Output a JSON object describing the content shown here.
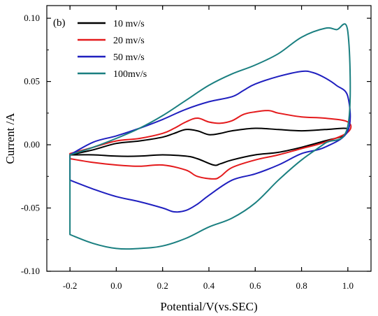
{
  "chart_data": {
    "type": "line",
    "panel_label": "(b)",
    "xlabel": "Potential/V(vs.SEC)",
    "ylabel": "Current /A",
    "xlim": [
      -0.3,
      1.1
    ],
    "ylim": [
      -0.1,
      0.11
    ],
    "xticks": [
      -0.2,
      0.0,
      0.2,
      0.4,
      0.6,
      0.8,
      1.0
    ],
    "xtick_labels": [
      "-0.2",
      "0.0",
      "0.2",
      "0.4",
      "0.6",
      "0.8",
      "1.0"
    ],
    "yticks": [
      -0.1,
      -0.05,
      0.0,
      0.05,
      0.1
    ],
    "ytick_labels": [
      "-0.10",
      "-0.05",
      "0.00",
      "0.05",
      "0.10"
    ],
    "grid": false,
    "legend_position": "top-left",
    "series": [
      {
        "name": "10 mv/s",
        "color": "#000000",
        "x": [
          -0.2,
          -0.1,
          0.0,
          0.1,
          0.2,
          0.25,
          0.3,
          0.35,
          0.4,
          0.45,
          0.5,
          0.6,
          0.7,
          0.8,
          0.9,
          0.98,
          1.0,
          0.98,
          0.9,
          0.8,
          0.7,
          0.6,
          0.5,
          0.45,
          0.42,
          0.35,
          0.3,
          0.2,
          0.1,
          0.0,
          -0.1,
          -0.2
        ],
        "y": [
          -0.008,
          -0.004,
          0.001,
          0.003,
          0.006,
          0.009,
          0.012,
          0.011,
          0.008,
          0.009,
          0.011,
          0.013,
          0.012,
          0.011,
          0.012,
          0.013,
          0.012,
          0.007,
          0.003,
          -0.002,
          -0.006,
          -0.008,
          -0.012,
          -0.015,
          -0.016,
          -0.011,
          -0.009,
          -0.008,
          -0.009,
          -0.009,
          -0.008,
          -0.008
        ]
      },
      {
        "name": "20 mv/s",
        "color": "#e41a1c",
        "x": [
          -0.2,
          -0.1,
          0.0,
          0.1,
          0.2,
          0.25,
          0.3,
          0.35,
          0.4,
          0.45,
          0.5,
          0.55,
          0.6,
          0.66,
          0.7,
          0.8,
          0.9,
          1.0,
          1.0,
          0.9,
          0.8,
          0.7,
          0.6,
          0.5,
          0.45,
          0.42,
          0.35,
          0.3,
          0.2,
          0.1,
          0.0,
          -0.1,
          -0.2
        ],
        "y": [
          -0.007,
          -0.002,
          0.003,
          0.005,
          0.009,
          0.013,
          0.018,
          0.021,
          0.018,
          0.017,
          0.019,
          0.024,
          0.026,
          0.027,
          0.025,
          0.022,
          0.021,
          0.018,
          0.01,
          0.002,
          -0.003,
          -0.008,
          -0.012,
          -0.018,
          -0.025,
          -0.027,
          -0.025,
          -0.02,
          -0.016,
          -0.017,
          -0.016,
          -0.014,
          -0.011
        ]
      },
      {
        "name": "50 mv/s",
        "color": "#1f1fbf",
        "x": [
          -0.2,
          -0.1,
          0.0,
          0.1,
          0.2,
          0.3,
          0.4,
          0.5,
          0.55,
          0.6,
          0.7,
          0.8,
          0.85,
          0.9,
          0.95,
          1.0,
          1.0,
          0.9,
          0.8,
          0.7,
          0.6,
          0.5,
          0.4,
          0.35,
          0.3,
          0.25,
          0.2,
          0.1,
          0.0,
          -0.1,
          -0.2
        ],
        "y": [
          -0.008,
          0.002,
          0.007,
          0.013,
          0.02,
          0.028,
          0.034,
          0.038,
          0.043,
          0.048,
          0.054,
          0.058,
          0.057,
          0.053,
          0.047,
          0.038,
          0.011,
          -0.002,
          -0.007,
          -0.016,
          -0.023,
          -0.028,
          -0.04,
          -0.047,
          -0.052,
          -0.053,
          -0.05,
          -0.045,
          -0.041,
          -0.035,
          -0.028
        ]
      },
      {
        "name": "100mv/s",
        "color": "#1a7f80",
        "x": [
          -0.2,
          -0.1,
          0.0,
          0.1,
          0.2,
          0.3,
          0.4,
          0.5,
          0.6,
          0.7,
          0.8,
          0.9,
          0.95,
          1.0,
          1.0,
          0.9,
          0.8,
          0.7,
          0.6,
          0.5,
          0.4,
          0.3,
          0.2,
          0.1,
          0.0,
          -0.1,
          -0.2
        ],
        "y": [
          -0.008,
          -0.002,
          0.005,
          0.013,
          0.023,
          0.035,
          0.047,
          0.056,
          0.063,
          0.072,
          0.085,
          0.092,
          0.091,
          0.089,
          0.015,
          0.001,
          -0.012,
          -0.028,
          -0.046,
          -0.058,
          -0.065,
          -0.074,
          -0.08,
          -0.082,
          -0.082,
          -0.078,
          -0.071
        ]
      }
    ]
  }
}
